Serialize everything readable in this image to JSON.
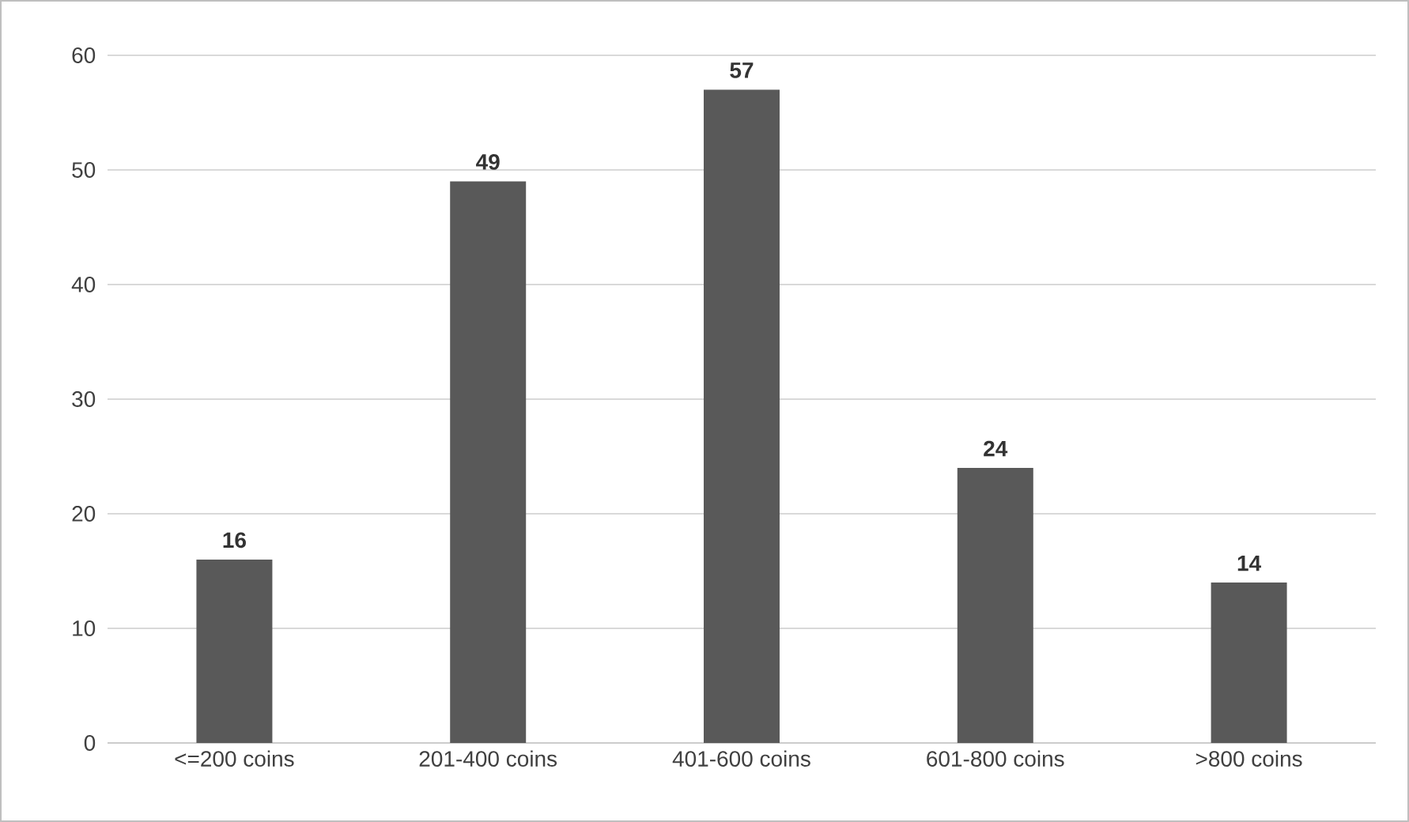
{
  "chart_data": {
    "type": "bar",
    "categories": [
      "<=200 coins",
      "201-400 coins",
      "401-600 coins",
      "601-800 coins",
      ">800 coins"
    ],
    "values": [
      16,
      49,
      57,
      24,
      14
    ],
    "color": "#595959",
    "ylim": [
      0,
      60
    ],
    "yticks": [
      0,
      10,
      20,
      30,
      40,
      50,
      60
    ],
    "grid": "y",
    "data_labels": true
  }
}
